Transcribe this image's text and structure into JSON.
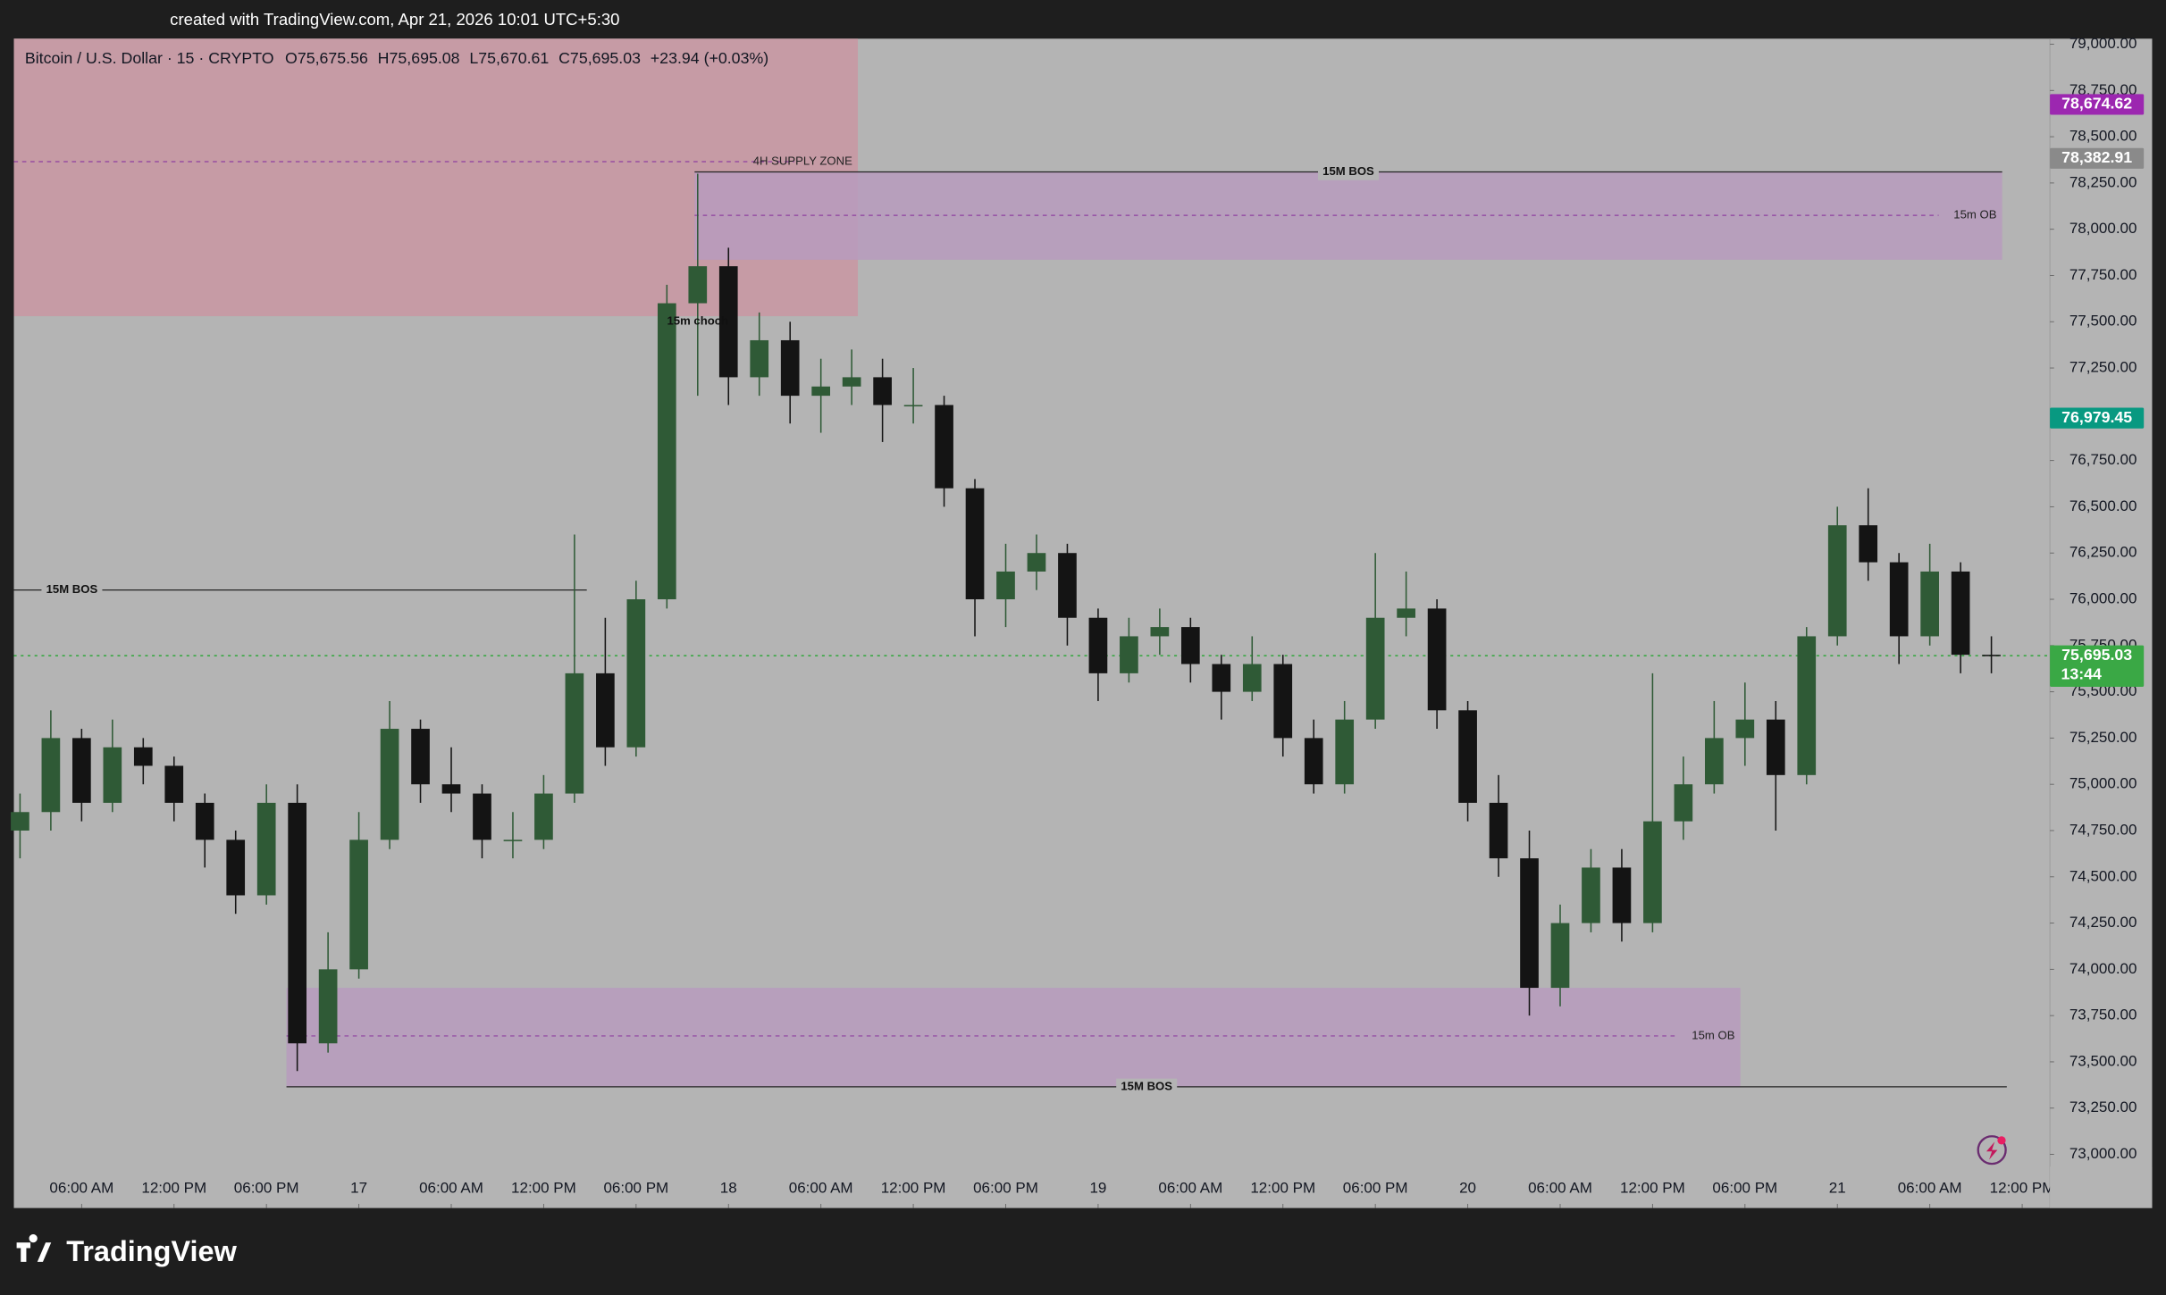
{
  "chart_data": {
    "type": "candlestick",
    "watermark": "created with TradingView.com, Apr 21, 2026 10:01 UTC+5:30",
    "title": "Bitcoin / U.S. Dollar · 15 · CRYPTO",
    "ohlc_labels": [
      "O75,675.56",
      "H75,695.08",
      "L75,670.61",
      "C75,695.03",
      "+23.94 (+0.03%)"
    ],
    "brand": "TradingView",
    "background": "#b4b4b4",
    "up_color": "#2f5a36",
    "down_color": "#141414",
    "xlim": [
      1.6,
      133.8
    ],
    "ylim": [
      72710,
      79030
    ],
    "x": [
      2,
      4,
      6,
      8,
      10,
      12,
      14,
      16,
      18,
      20,
      22,
      24,
      26,
      28,
      30,
      32,
      34,
      36,
      38,
      40,
      42,
      44,
      46,
      48,
      50,
      52,
      54,
      56,
      58,
      60,
      62,
      64,
      66,
      68,
      70,
      72,
      74,
      76,
      78,
      80,
      82,
      84,
      86,
      88,
      90,
      92,
      94,
      96,
      98,
      100,
      102,
      104,
      106,
      108,
      110,
      112,
      114,
      116,
      118,
      120,
      122,
      124,
      126,
      128,
      130
    ],
    "open": [
      74750,
      74850,
      75250,
      74900,
      75200,
      75100,
      74900,
      74700,
      74400,
      74900,
      73600,
      74000,
      74700,
      75300,
      75000,
      74950,
      74700,
      74700,
      74950,
      75600,
      75200,
      76000,
      77600,
      77800,
      77200,
      77400,
      77100,
      77150,
      77200,
      77050,
      77050,
      76600,
      76000,
      76150,
      76250,
      75900,
      75600,
      75800,
      75850,
      75650,
      75500,
      75650,
      75250,
      75000,
      75350,
      75900,
      75950,
      75400,
      74900,
      74600,
      73900,
      74250,
      74550,
      74250,
      74800,
      75000,
      75250,
      75350,
      75050,
      75800,
      76400,
      76200,
      75800,
      76150,
      75700
    ],
    "high": [
      74950,
      75400,
      75300,
      75350,
      75250,
      75150,
      74950,
      74750,
      75000,
      75000,
      74200,
      74850,
      75450,
      75350,
      75200,
      75000,
      74850,
      75050,
      76350,
      75900,
      76100,
      77700,
      78300,
      77900,
      77550,
      77500,
      77300,
      77350,
      77300,
      77250,
      77100,
      76650,
      76300,
      76350,
      76300,
      75950,
      75900,
      75950,
      75900,
      75700,
      75800,
      75700,
      75350,
      75450,
      76250,
      76150,
      76000,
      75450,
      75050,
      74750,
      74350,
      74650,
      74650,
      75600,
      75150,
      75450,
      75550,
      75450,
      75850,
      76500,
      76600,
      76250,
      76300,
      76200,
      75800
    ],
    "low": [
      74600,
      74750,
      74800,
      74850,
      75000,
      74800,
      74550,
      74300,
      74350,
      73450,
      73550,
      73950,
      74650,
      74900,
      74850,
      74600,
      74600,
      74650,
      74900,
      75100,
      75150,
      75950,
      77100,
      77050,
      77100,
      76950,
      76900,
      77050,
      76850,
      76950,
      76500,
      75800,
      75850,
      76050,
      75750,
      75450,
      75550,
      75700,
      75550,
      75350,
      75450,
      75150,
      74950,
      74950,
      75300,
      75800,
      75300,
      74800,
      74500,
      73750,
      73800,
      74200,
      74150,
      74200,
      74700,
      74950,
      75100,
      74750,
      75000,
      75750,
      76100,
      75650,
      75750,
      75600,
      75600
    ],
    "close": [
      74850,
      75250,
      74900,
      75200,
      75100,
      74900,
      74700,
      74400,
      74900,
      73600,
      74000,
      74700,
      75300,
      75000,
      74950,
      74700,
      74700,
      74950,
      75600,
      75200,
      76000,
      77600,
      77800,
      77200,
      77400,
      77100,
      77150,
      77200,
      77050,
      77050,
      76600,
      76000,
      76150,
      76250,
      75900,
      75600,
      75800,
      75850,
      75650,
      75500,
      75650,
      75250,
      75000,
      75350,
      75900,
      75950,
      75400,
      74900,
      74600,
      73900,
      74250,
      74550,
      74250,
      74800,
      75000,
      75250,
      75350,
      75050,
      75800,
      76400,
      76200,
      75800,
      76150,
      75700,
      75695.03
    ],
    "xticks": [
      {
        "value": 6,
        "label": "06:00 AM"
      },
      {
        "value": 12,
        "label": "12:00 PM"
      },
      {
        "value": 18,
        "label": "06:00 PM"
      },
      {
        "value": 24,
        "label": "17"
      },
      {
        "value": 30,
        "label": "06:00 AM"
      },
      {
        "value": 36,
        "label": "12:00 PM"
      },
      {
        "value": 42,
        "label": "06:00 PM"
      },
      {
        "value": 48,
        "label": "18"
      },
      {
        "value": 54,
        "label": "06:00 AM"
      },
      {
        "value": 60,
        "label": "12:00 PM"
      },
      {
        "value": 66,
        "label": "06:00 PM"
      },
      {
        "value": 72,
        "label": "19"
      },
      {
        "value": 78,
        "label": "06:00 AM"
      },
      {
        "value": 84,
        "label": "12:00 PM"
      },
      {
        "value": 90,
        "label": "06:00 PM"
      },
      {
        "value": 96,
        "label": "20"
      },
      {
        "value": 102,
        "label": "06:00 AM"
      },
      {
        "value": 108,
        "label": "12:00 PM"
      },
      {
        "value": 114,
        "label": "06:00 PM"
      },
      {
        "value": 120,
        "label": "21"
      },
      {
        "value": 126,
        "label": "06:00 AM"
      },
      {
        "value": 132,
        "label": "12:00 PM"
      }
    ],
    "yticks": [
      {
        "value": 73000,
        "label": "73,000.00"
      },
      {
        "value": 73250,
        "label": "73,250.00"
      },
      {
        "value": 73500,
        "label": "73,500.00"
      },
      {
        "value": 73750,
        "label": "73,750.00"
      },
      {
        "value": 74000,
        "label": "74,000.00"
      },
      {
        "value": 74250,
        "label": "74,250.00"
      },
      {
        "value": 74500,
        "label": "74,500.00"
      },
      {
        "value": 74750,
        "label": "74,750.00"
      },
      {
        "value": 75000,
        "label": "75,000.00"
      },
      {
        "value": 75250,
        "label": "75,250.00"
      },
      {
        "value": 75500,
        "label": "75,500.00"
      },
      {
        "value": 75750,
        "label": "75,750.00"
      },
      {
        "value": 76000,
        "label": "76,000.00"
      },
      {
        "value": 76250,
        "label": "76,250.00"
      },
      {
        "value": 76500,
        "label": "76,500.00"
      },
      {
        "value": 76750,
        "label": "76,750.00"
      },
      {
        "value": 77000,
        "label": "77,000.00"
      },
      {
        "value": 77250,
        "label": "77,250.00"
      },
      {
        "value": 77500,
        "label": "77,500.00"
      },
      {
        "value": 77750,
        "label": "77,750.00"
      },
      {
        "value": 78000,
        "label": "78,000.00"
      },
      {
        "value": 78250,
        "label": "78,250.00"
      },
      {
        "value": 78500,
        "label": "78,500.00"
      },
      {
        "value": 78750,
        "label": "78,750.00"
      },
      {
        "value": 79000,
        "label": "79,000.00"
      }
    ],
    "zones": [
      {
        "label": "4H SUPPLY ZONE",
        "x": [
          1.6,
          56.4
        ],
        "y": [
          77530,
          79030
        ],
        "mid": 78365,
        "color": "#c996a2"
      },
      {
        "label": "15m OB",
        "x": [
          45.8,
          130.7
        ],
        "y": [
          77835,
          78310
        ],
        "mid": 78075,
        "color": "#b79bbd"
      },
      {
        "label": "15m OB",
        "x": [
          19.3,
          113.7
        ],
        "y": [
          73365,
          73900
        ],
        "mid": 73640,
        "color": "#b79bbd"
      }
    ],
    "lines": [
      {
        "label": "15M BOS",
        "x": [
          45.8,
          130.7
        ],
        "y": 78310
      },
      {
        "label": "15M BOS",
        "x": [
          1.6,
          38.8
        ],
        "y": 76050
      },
      {
        "label": "15M BOS",
        "x": [
          19.3,
          131.0
        ],
        "y": 73365
      }
    ],
    "annotations": [
      {
        "text": "15m choch",
        "x": 46,
        "y": 77500
      }
    ],
    "price_line": {
      "value": 75695.03,
      "color": "#3aa845"
    },
    "price_badges": [
      {
        "value": 78674.62,
        "label": "78,674.62",
        "color": "#9c27b0"
      },
      {
        "value": 78382.91,
        "label": "78,382.91",
        "color": "#8a8a8a"
      },
      {
        "value": 76979.45,
        "label": "76,979.45",
        "color": "#089981"
      },
      {
        "value": 75695.03,
        "label": "75,695.03",
        "sublabel": "13:44",
        "color": "#3aa845"
      }
    ]
  }
}
